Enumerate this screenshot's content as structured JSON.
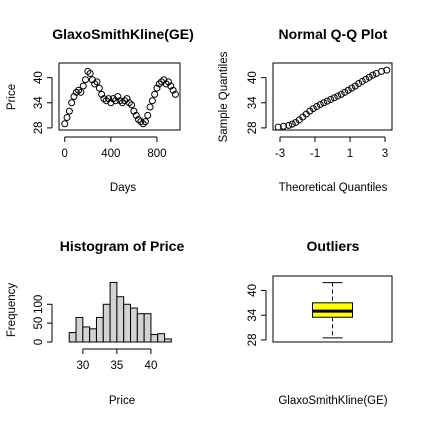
{
  "chart_data": [
    {
      "type": "line",
      "title": "GlaxoSmithKline(GE)",
      "xlabel": "Days",
      "ylabel": "Price",
      "xlim": [
        -50,
        1000
      ],
      "ylim": [
        27.5,
        43.5
      ],
      "x_ticks": [
        0,
        400,
        800
      ],
      "y_ticks": [
        28,
        34,
        40
      ],
      "marker": "open-circle",
      "series": [
        {
          "x": [
            0,
            20,
            40,
            60,
            80,
            100,
            120,
            140,
            160,
            180,
            200,
            220,
            240,
            260,
            280,
            300,
            320,
            340,
            360,
            380,
            400,
            420,
            440,
            460,
            480,
            500,
            520,
            540,
            560,
            580,
            600,
            620,
            640,
            660,
            680,
            700,
            720,
            740,
            760,
            780,
            800,
            820,
            840,
            860,
            880,
            900,
            920,
            940,
            960
          ],
          "y": [
            29,
            30.5,
            32,
            34,
            35.5,
            36.5,
            37,
            36.5,
            38,
            39.5,
            41.5,
            41,
            39.5,
            38.5,
            39,
            37.5,
            36,
            35,
            34.5,
            35,
            34,
            35,
            34.5,
            35.5,
            34.5,
            34,
            34.5,
            35,
            34,
            33.5,
            32,
            31,
            30,
            29.5,
            29,
            29.5,
            31,
            33,
            34.5,
            36,
            37.5,
            38.5,
            39,
            39.5,
            38.5,
            39,
            38,
            37,
            36
          ]
        }
      ]
    },
    {
      "type": "scatter",
      "title": "Normal Q-Q Plot",
      "xlabel": "Theoretical Quantiles",
      "ylabel": "Sample Quantiles",
      "xlim": [
        -3.4,
        3.4
      ],
      "ylim": [
        27.5,
        43.5
      ],
      "x_ticks": [
        -3,
        -1,
        1,
        3
      ],
      "y_ticks": [
        28,
        34,
        40
      ],
      "marker": "open-circle",
      "series": [
        {
          "x": [
            -3.1,
            -2.8,
            -2.5,
            -2.3,
            -2.1,
            -1.9,
            -1.7,
            -1.5,
            -1.3,
            -1.1,
            -0.9,
            -0.7,
            -0.5,
            -0.3,
            -0.1,
            0.1,
            0.3,
            0.5,
            0.7,
            0.9,
            1.1,
            1.3,
            1.5,
            1.7,
            1.9,
            2.1,
            2.3,
            2.5,
            2.8,
            3.1
          ],
          "y": [
            28.2,
            28.4,
            28.6,
            28.9,
            29.3,
            29.9,
            30.6,
            31.3,
            32,
            32.6,
            33.1,
            33.6,
            34,
            34.4,
            34.8,
            35.2,
            35.6,
            36,
            36.5,
            37,
            37.5,
            38,
            38.6,
            39.1,
            39.6,
            40.1,
            40.6,
            41,
            41.5,
            41.8
          ]
        }
      ]
    },
    {
      "type": "bar",
      "title": "Histogram of Price",
      "xlabel": "Price",
      "ylabel": "Frequency",
      "xlim": [
        26.5,
        45
      ],
      "ylim": [
        0,
        175
      ],
      "x_ticks": [
        30,
        35,
        40
      ],
      "y_ticks": [
        0,
        50,
        100
      ],
      "bin_edges": [
        28,
        29,
        30,
        31,
        32,
        33,
        34,
        35,
        36,
        37,
        38,
        39,
        40,
        41,
        42,
        43
      ],
      "values": [
        25,
        65,
        40,
        35,
        65,
        100,
        158,
        120,
        100,
        90,
        75,
        75,
        20,
        22,
        8
      ]
    },
    {
      "type": "boxplot",
      "title": "Outliers",
      "xlabel": "GlaxoSmithKline(GE)",
      "ylabel": "",
      "ylim": [
        27.5,
        43.5
      ],
      "y_ticks": [
        28,
        34,
        40
      ],
      "fill": "#ffff00",
      "stats": {
        "min": 28.5,
        "q1": 33.5,
        "median": 35,
        "q3": 37,
        "max": 41.9
      }
    }
  ]
}
